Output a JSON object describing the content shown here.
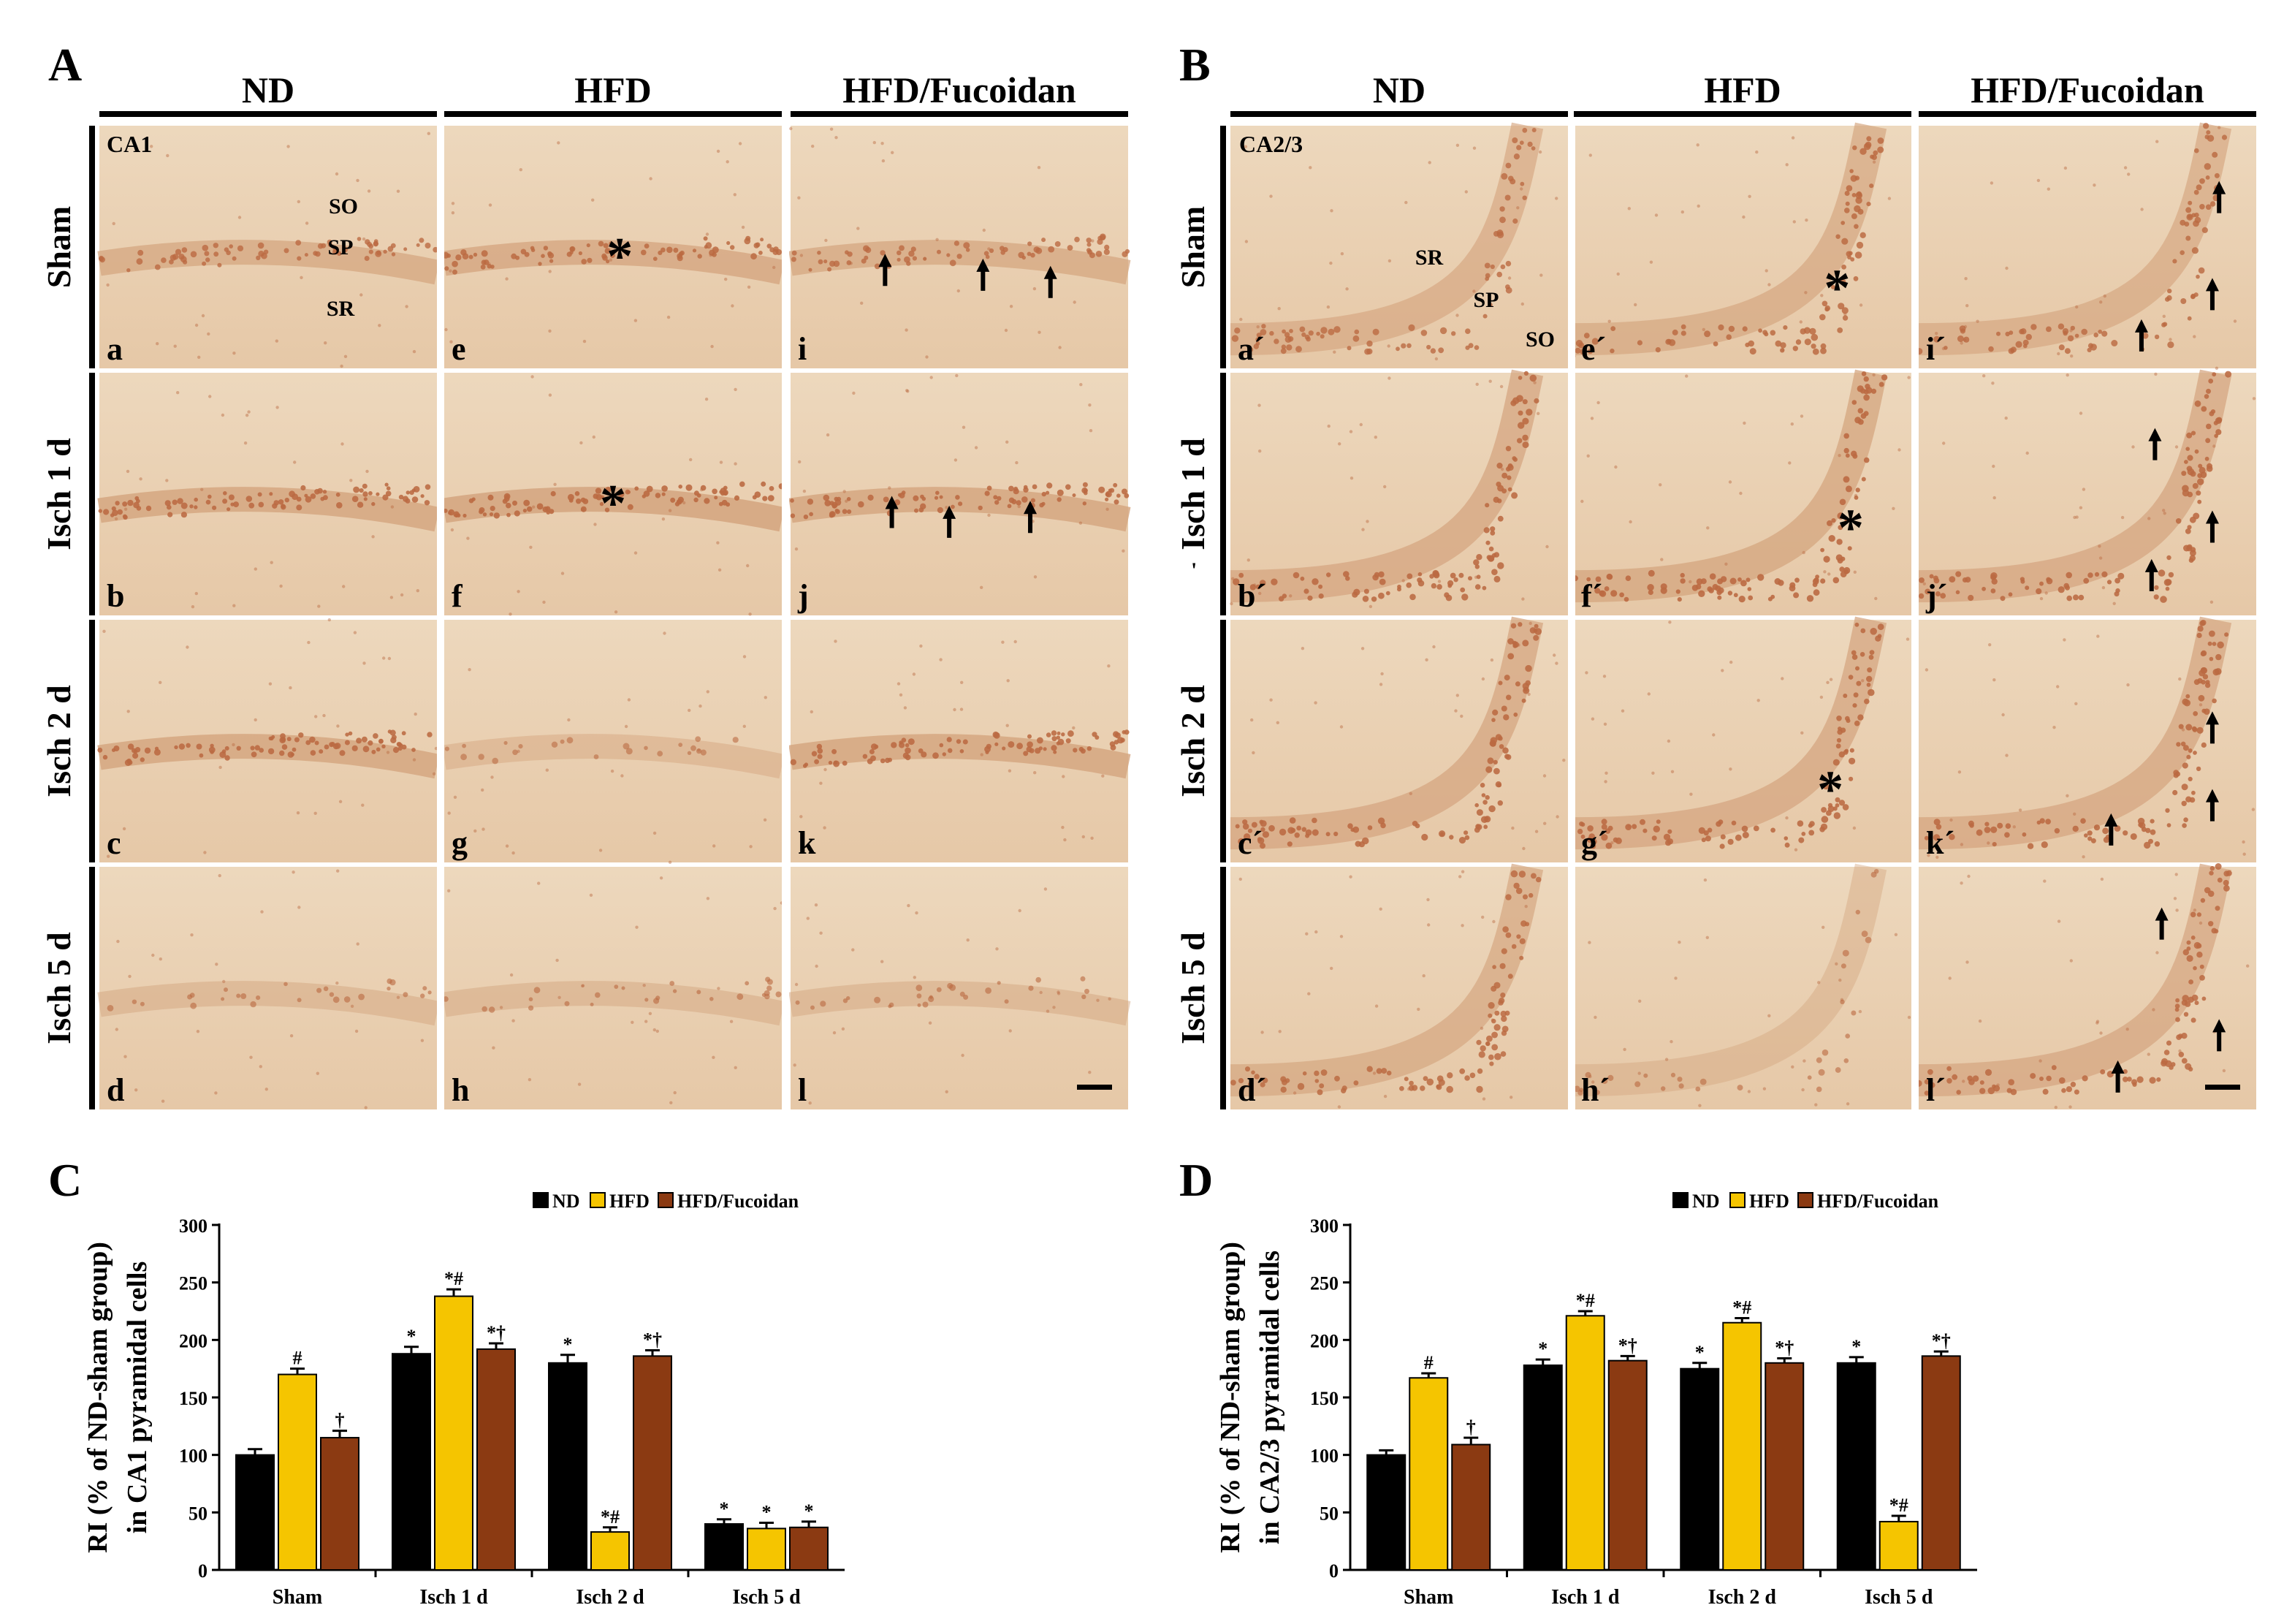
{
  "panels": {
    "A": {
      "letter": "A",
      "columns": [
        "ND",
        "HFD",
        "HFD/Fucoidan"
      ],
      "rows": [
        "Sham",
        "Isch 1 d",
        "Isch 2 d",
        "Isch 5 d"
      ],
      "region": "CA1",
      "layer_labels": [
        "SO",
        "SP",
        "SR"
      ],
      "tile_letters": [
        [
          "a",
          "e",
          "i"
        ],
        [
          "b",
          "f",
          "j"
        ],
        [
          "c",
          "g",
          "k"
        ],
        [
          "d",
          "h",
          "l"
        ]
      ]
    },
    "B": {
      "letter": "B",
      "columns": [
        "ND",
        "HFD",
        "HFD/Fucoidan"
      ],
      "rows": [
        "Sham",
        "Isch 1 d",
        "Isch 2 d",
        "Isch 5 d"
      ],
      "region": "CA2/3",
      "layer_labels": [
        "SR",
        "SP",
        "SO"
      ],
      "tile_letters": [
        [
          "a´",
          "e´",
          "i´"
        ],
        [
          "b´",
          "f´",
          "j´"
        ],
        [
          "c´",
          "g´",
          "k´"
        ],
        [
          "d´",
          "h´",
          "l´"
        ]
      ],
      "stray_mark": "'"
    }
  },
  "markers": {
    "asterisk": "*",
    "arrow": "↑"
  },
  "colors": {
    "tissue": "#ecd3b4",
    "tissue_dark": "#d4a57f",
    "nuclei": "#bb6a42",
    "ND": "#000000",
    "HFD": "#f5c500",
    "HFD_Fucoidan": "#8b3a12"
  },
  "chart_data": [
    {
      "panel": "C",
      "type": "bar",
      "categories": [
        "Sham",
        "Isch 1 d",
        "Isch 2 d",
        "Isch 5 d"
      ],
      "series": [
        {
          "name": "ND",
          "values": [
            100,
            188,
            180,
            40
          ],
          "errors": [
            5,
            6,
            7,
            4
          ],
          "labels": [
            "",
            "*",
            "*",
            "*"
          ]
        },
        {
          "name": "HFD",
          "values": [
            170,
            238,
            33,
            36
          ],
          "errors": [
            5,
            6,
            4,
            5
          ],
          "labels": [
            "#",
            "*#",
            "*#",
            "*"
          ]
        },
        {
          "name": "HFD/Fucoidan",
          "values": [
            115,
            192,
            186,
            37
          ],
          "errors": [
            6,
            5,
            5,
            5
          ],
          "labels": [
            "†",
            "*†",
            "*†",
            "*"
          ]
        }
      ],
      "ylabel_line1": "RI (% of ND-sham group)",
      "ylabel_line2": "in CA1 pyramidal cells",
      "ylim": [
        0,
        300
      ],
      "yticks": [
        0,
        50,
        100,
        150,
        200,
        250,
        300
      ],
      "legend": "top-center"
    },
    {
      "panel": "D",
      "type": "bar",
      "categories": [
        "Sham",
        "Isch 1 d",
        "Isch 2 d",
        "Isch 5 d"
      ],
      "series": [
        {
          "name": "ND",
          "values": [
            100,
            178,
            175,
            180
          ],
          "errors": [
            4,
            5,
            5,
            5
          ],
          "labels": [
            "",
            "*",
            "*",
            "*"
          ]
        },
        {
          "name": "HFD",
          "values": [
            167,
            221,
            215,
            42
          ],
          "errors": [
            4,
            4,
            4,
            5
          ],
          "labels": [
            "#",
            "*#",
            "*#",
            "*#"
          ]
        },
        {
          "name": "HFD/Fucoidan",
          "values": [
            109,
            182,
            180,
            186
          ],
          "errors": [
            6,
            4,
            4,
            4
          ],
          "labels": [
            "†",
            "*†",
            "*†",
            "*†"
          ]
        }
      ],
      "ylabel_line1": "RI (% of ND-sham group)",
      "ylabel_line2": "in CA2/3 pyramidal cells",
      "ylim": [
        0,
        300
      ],
      "yticks": [
        0,
        50,
        100,
        150,
        200,
        250,
        300
      ],
      "legend": "top-center"
    }
  ]
}
